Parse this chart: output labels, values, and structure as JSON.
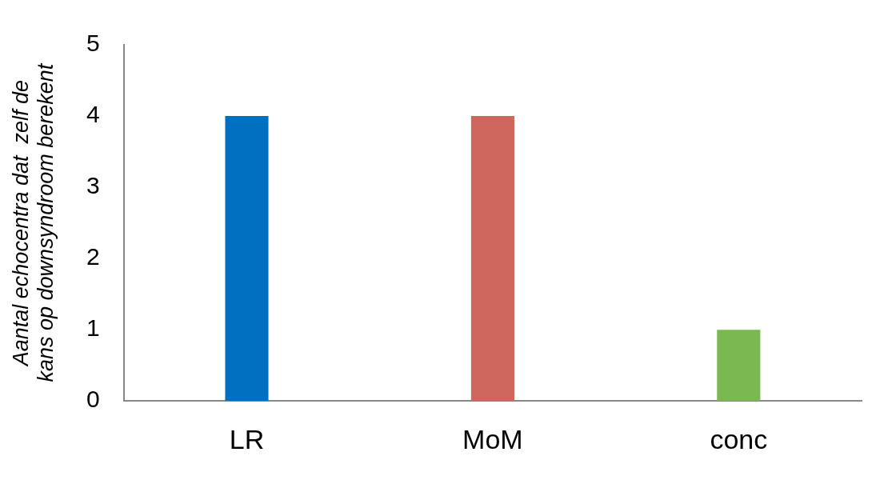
{
  "chart_data": {
    "type": "bar",
    "ylabel": "Aantal echocentra dat  zelf de kans op downsyndroom berekent",
    "categories": [
      "LR",
      "MoM",
      "conc"
    ],
    "values": [
      4,
      4,
      1
    ],
    "colors": [
      "#0070c0",
      "#cd665c",
      "#7ab851"
    ],
    "ylim": [
      0,
      5
    ],
    "yticks": [
      0,
      1,
      2,
      3,
      4,
      5
    ],
    "grid": false,
    "legend": false
  }
}
